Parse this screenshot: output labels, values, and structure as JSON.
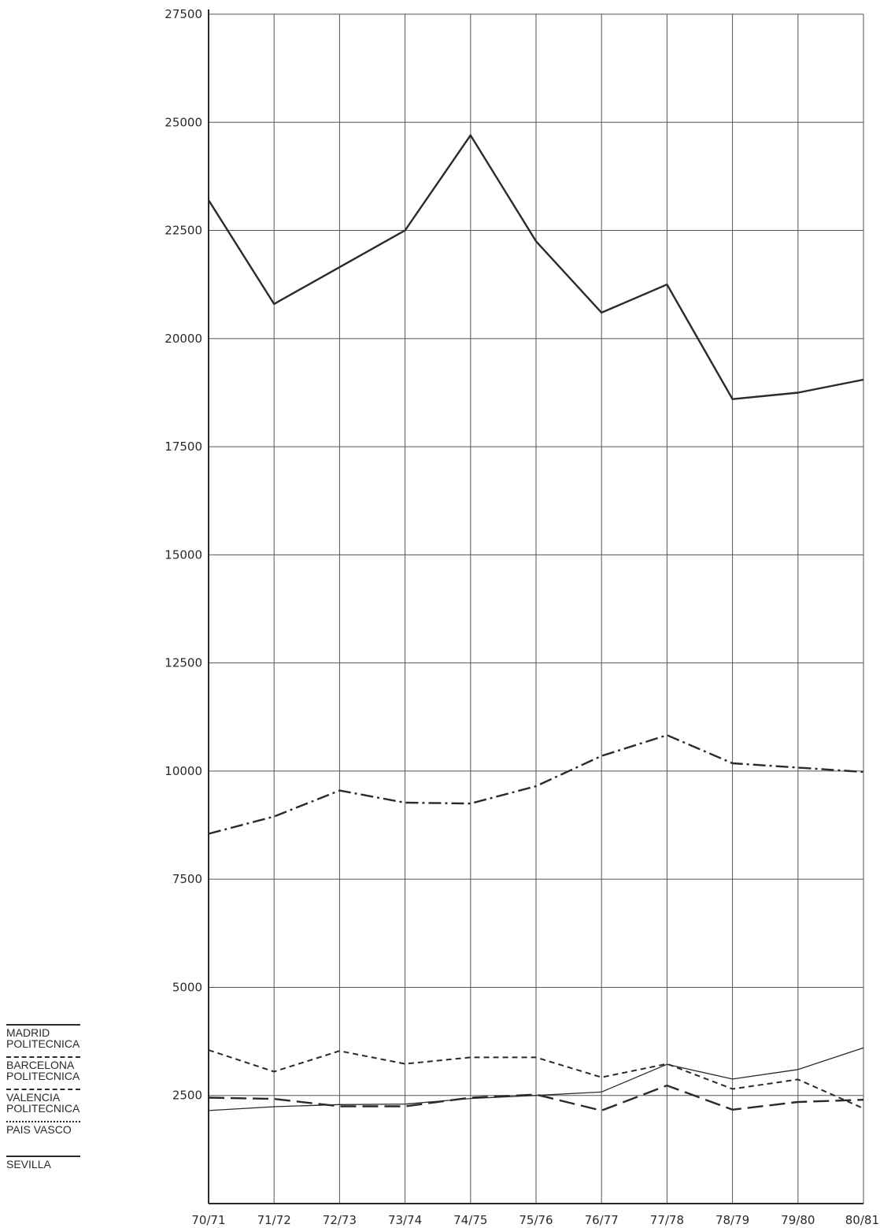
{
  "chart_data": {
    "type": "line",
    "title": "",
    "xlabel": "",
    "ylabel": "",
    "categories": [
      "70/71",
      "71/72",
      "72/73",
      "73/74",
      "74/75",
      "75/76",
      "76/77",
      "77/78",
      "78/79",
      "79/80",
      "80/81"
    ],
    "y_ticks": [
      2500,
      5000,
      7500,
      10000,
      12500,
      15000,
      17500,
      20000,
      22500,
      25000,
      27500
    ],
    "y_tick_labels": [
      "2500",
      "5000",
      "7500",
      "10000",
      "12500",
      "15000",
      "17500",
      "20000",
      "22500",
      "25000",
      "27500"
    ],
    "ylim": [
      0,
      27500
    ],
    "grid": true,
    "legend_position": "bottom-left",
    "series": [
      {
        "name": "MADRID POLITECNICA",
        "style": "solid-bold",
        "values": [
          23200,
          20800,
          21650,
          22500,
          24700,
          22250,
          20600,
          21250,
          18600,
          18750,
          19050
        ]
      },
      {
        "name": "BARCELONA POLITECNICA",
        "style": "dashdot",
        "values": [
          8550,
          8950,
          9550,
          9270,
          9250,
          9650,
          10350,
          10830,
          10180,
          10080,
          9980
        ]
      },
      {
        "name": "VALENCIA POLITECNICA",
        "style": "longdash",
        "values": [
          2450,
          2420,
          2250,
          2250,
          2450,
          2520,
          2150,
          2730,
          2170,
          2350,
          2400
        ]
      },
      {
        "name": "PAIS VASCO",
        "style": "shortdash",
        "values": [
          3550,
          3050,
          3530,
          3230,
          3380,
          3380,
          2920,
          3230,
          2650,
          2870,
          2200
        ]
      },
      {
        "name": "SEVILLA",
        "style": "solid-thin",
        "values": [
          2150,
          2240,
          2290,
          2300,
          2430,
          2500,
          2580,
          3220,
          2880,
          3100,
          3600
        ]
      }
    ]
  },
  "legend": {
    "items": [
      {
        "label": "MADRID\nPOLITECNICA",
        "style": "solid"
      },
      {
        "label": "BARCELONA\nPOLITECNICA",
        "style": "dashdot"
      },
      {
        "label": "VALENCIA\nPOLITECNICA",
        "style": "longdash"
      },
      {
        "label": "PAIS VASCO",
        "style": "shortdash"
      },
      {
        "label": "SEVILLA",
        "style": "solid"
      }
    ]
  },
  "colors": {
    "ink": "#2a2a2a",
    "grid": "#555555",
    "background": "#ffffff"
  }
}
